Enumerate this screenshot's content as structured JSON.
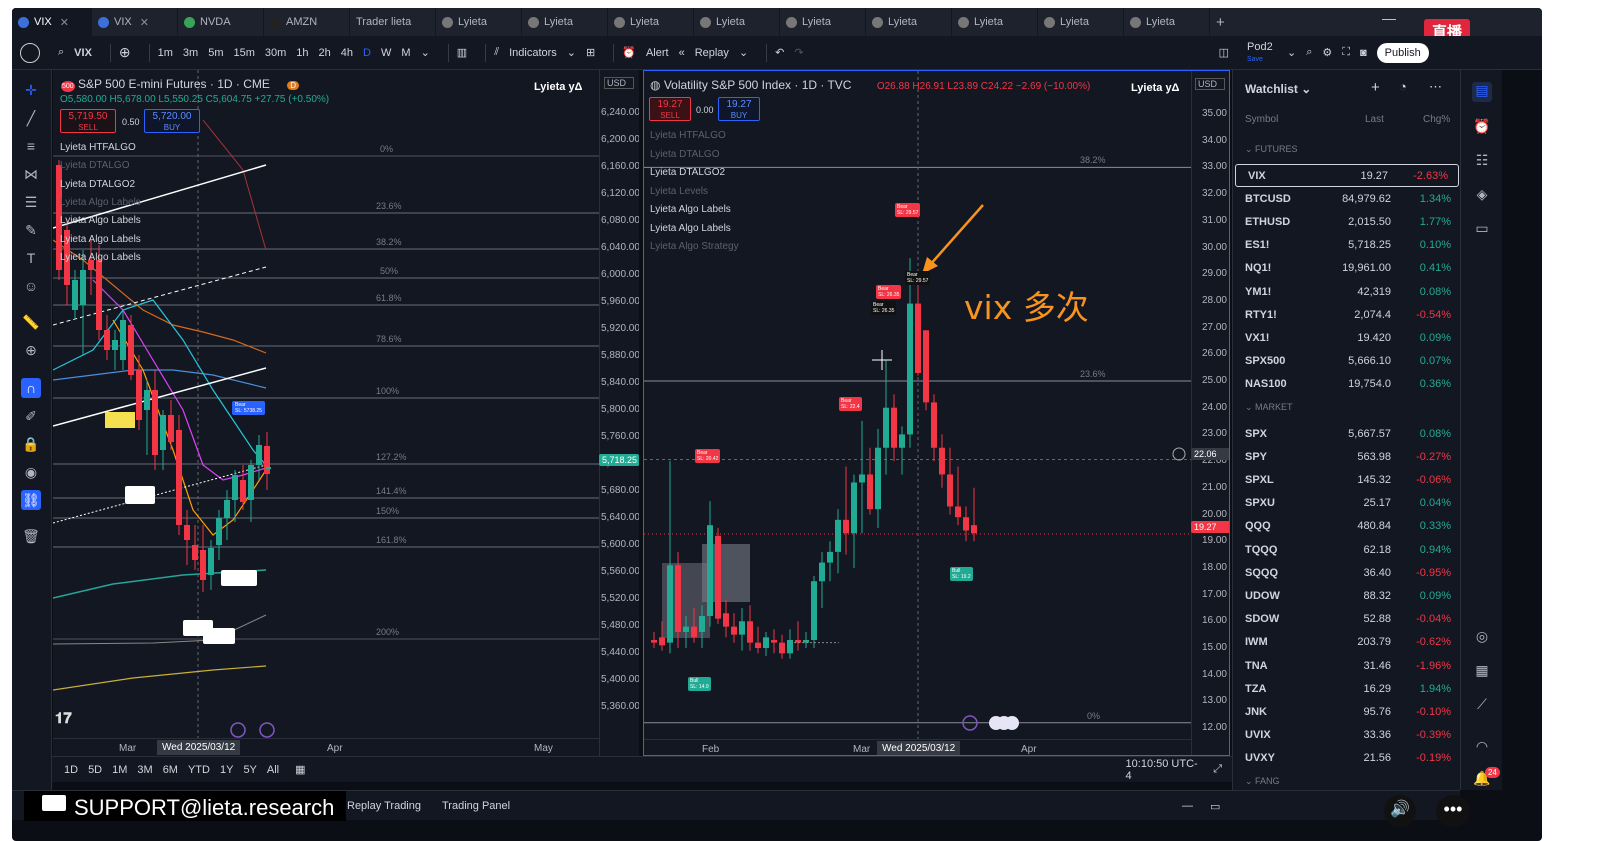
{
  "tabs": [
    "VIX",
    "VIX",
    "NVDA",
    "AMZN",
    "Trader lieta",
    "Lyieta",
    "Lyieta",
    "Lyieta",
    "Lyieta",
    "Lyieta",
    "Lyieta",
    "Lyieta",
    "Lyieta",
    "Lyieta"
  ],
  "toolbar": {
    "symbol": "VIX",
    "intervals": [
      "1m",
      "3m",
      "5m",
      "15m",
      "30m",
      "1h",
      "2h",
      "4h",
      "D",
      "W",
      "M"
    ],
    "indicators": "Indicators",
    "alert": "Alert",
    "replay": "Replay",
    "layout_name": "Pod2",
    "layout_sub": "Save",
    "publish": "Publish",
    "live_badge": "直播"
  },
  "left_chart": {
    "title": "S&P 500 E-mini Futures · 1D · CME",
    "badge": "500",
    "badge_d": "D",
    "ohlc": "O5,580.00 H5,678.00 L5,550.25 C5,604.75 +27.75 (+0.50%)",
    "sell": {
      "price": "5,719.50",
      "label": "SELL"
    },
    "spread": "0.50",
    "buy": {
      "price": "5,720.00",
      "label": "BUY"
    },
    "indicators": [
      "Lyieta HTFALGO",
      "Lyieta DTALGO",
      "Lyieta DTALGO2",
      "Lyieta Algo Labels",
      "Lyieta Algo Labels",
      "Lyieta Algo Labels",
      "Lyieta Algo Labels"
    ],
    "brand": "Lyieta yΔ",
    "currency": "USD",
    "y_labels": [
      "6,240.00",
      "6,200.00",
      "6,160.00",
      "6,120.00",
      "6,080.00",
      "6,040.00",
      "6,000.00",
      "5,960.00",
      "5,920.00",
      "5,880.00",
      "5,840.00",
      "5,800.00",
      "5,760.00",
      "5,720.00",
      "5,680.00",
      "5,640.00",
      "5,600.00",
      "5,560.00",
      "5,520.00",
      "5,480.00",
      "5,440.00",
      "5,400.00",
      "5,360.00"
    ],
    "price_tag": "5,718.25",
    "fib": [
      "0%",
      "23.6%",
      "38.2%",
      "50%",
      "61.8%",
      "78.6%",
      "100%",
      "127.2%",
      "141.4%",
      "150%",
      "161.8%",
      "200%"
    ],
    "x_labels": [
      "Mar",
      "Apr",
      "May"
    ],
    "x_cursor": "Wed 2025/03/12",
    "label_bear": "Bear",
    "label_sl": "SL: 5738.25"
  },
  "right_chart": {
    "title": "Volatility S&P 500 Index · 1D · TVC",
    "ohlc": "O26.88 H26.91 L23.89 C24.22 −2.69 (−10.00%)",
    "sell": {
      "price": "19.27",
      "label": "SELL"
    },
    "spread": "0.00",
    "buy": {
      "price": "19.27",
      "label": "BUY"
    },
    "indicators": [
      "Lyieta HTFALGO",
      "Lyieta DTALGO",
      "Lyieta DTALGO2",
      "Lyieta Levels",
      "Lyieta Algo Labels",
      "Lyieta Algo Labels",
      "Lyieta Algo Strategy"
    ],
    "brand": "Lyieta yΔ",
    "currency": "USD",
    "y_labels": [
      "35.00",
      "34.00",
      "33.00",
      "32.00",
      "31.00",
      "30.00",
      "29.00",
      "28.00",
      "27.00",
      "26.00",
      "25.00",
      "24.00",
      "23.00",
      "22.00",
      "21.00",
      "20.00",
      "19.00",
      "18.00",
      "17.00",
      "16.00",
      "15.00",
      "14.00",
      "13.00",
      "12.00"
    ],
    "crosshair_price": "22.06",
    "last_price": "19.27",
    "fib": [
      "38.2%",
      "23.6%",
      "0%"
    ],
    "x_labels": [
      "Feb",
      "Mar",
      "Apr"
    ],
    "x_cursor": "Wed 2025/03/12",
    "annotation": "vix 多次",
    "labels": [
      {
        "t": "Bear",
        "sl": "SL: 29.57"
      },
      {
        "t": "Bear",
        "sl": "SL: 29.57"
      },
      {
        "t": "Bear",
        "sl": "SL: 26.35"
      },
      {
        "t": "Bear",
        "sl": "SL: 26.35"
      },
      {
        "t": "Bear",
        "sl": "SL: 22.4"
      },
      {
        "t": "Bear",
        "sl": "SL: 20.42"
      },
      {
        "t": "Bull",
        "sl": "SL: 19.2"
      },
      {
        "t": "Bull",
        "sl": "SL: 14.9"
      }
    ]
  },
  "watchlist": {
    "title": "Watchlist",
    "cols": [
      "Symbol",
      "Last",
      "Chg%"
    ],
    "sections": [
      {
        "name": "FUTURES",
        "rows": [
          [
            "VIX",
            "19.27",
            "-2.63%",
            "neg"
          ],
          [
            "BTCUSD",
            "84,979.62",
            "1.34%",
            "pos"
          ],
          [
            "ETHUSD",
            "2,015.50",
            "1.77%",
            "pos"
          ],
          [
            "ES1!",
            "5,718.25",
            "0.10%",
            "pos"
          ],
          [
            "NQ1!",
            "19,961.00",
            "0.41%",
            "pos"
          ],
          [
            "YM1!",
            "42,319",
            "0.08%",
            "pos"
          ],
          [
            "RTY1!",
            "2,074.4",
            "-0.54%",
            "neg"
          ],
          [
            "VX1!",
            "19.420",
            "0.09%",
            "pos"
          ],
          [
            "SPX500",
            "5,666.10",
            "0.07%",
            "pos"
          ],
          [
            "NAS100",
            "19,754.0",
            "0.36%",
            "pos"
          ]
        ]
      },
      {
        "name": "MARKET",
        "rows": [
          [
            "SPX",
            "5,667.57",
            "0.08%",
            "pos"
          ],
          [
            "SPY",
            "563.98",
            "-0.27%",
            "neg"
          ],
          [
            "SPXL",
            "145.32",
            "-0.06%",
            "neg"
          ],
          [
            "SPXU",
            "25.17",
            "0.04%",
            "pos"
          ],
          [
            "QQQ",
            "480.84",
            "0.33%",
            "pos"
          ],
          [
            "TQQQ",
            "62.18",
            "0.94%",
            "pos"
          ],
          [
            "SQQQ",
            "36.40",
            "-0.95%",
            "neg"
          ],
          [
            "UDOW",
            "88.32",
            "0.09%",
            "pos"
          ],
          [
            "SDOW",
            "52.88",
            "-0.04%",
            "neg"
          ],
          [
            "IWM",
            "203.79",
            "-0.62%",
            "neg"
          ],
          [
            "TNA",
            "31.46",
            "-1.96%",
            "neg"
          ],
          [
            "TZA",
            "16.29",
            "1.94%",
            "pos"
          ],
          [
            "JNK",
            "95.76",
            "-0.10%",
            "neg"
          ],
          [
            "UVIX",
            "33.36",
            "-0.39%",
            "neg"
          ],
          [
            "UVXY",
            "21.56",
            "-0.19%",
            "neg"
          ]
        ]
      },
      {
        "name": "FANG",
        "rows": []
      }
    ]
  },
  "bottom": {
    "ranges": [
      "1D",
      "5D",
      "1M",
      "3M",
      "6M",
      "YTD",
      "1Y",
      "5Y",
      "All"
    ],
    "time": "10:10:50 UTC-4"
  },
  "panels": {
    "support": "SUPPORT@lieta.research",
    "replay": "Replay Trading",
    "trading": "Trading Panel",
    "notif": "24"
  },
  "colors": {
    "up": "#22ab94",
    "down": "#f23645",
    "accent": "#2962ff",
    "bg": "#131722"
  }
}
